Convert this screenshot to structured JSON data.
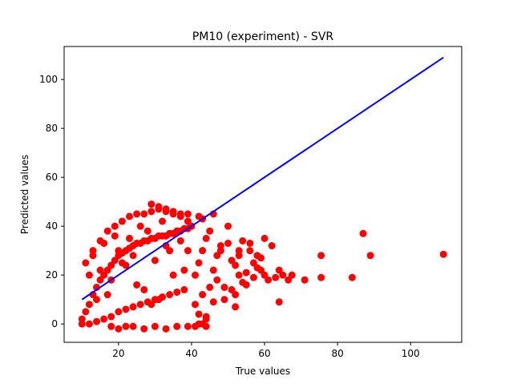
{
  "chart_data": {
    "type": "scatter",
    "title": "PM10 (experiment) - SVR",
    "xlabel": "True values",
    "ylabel": "Predicted values",
    "xlim": [
      5.1,
      114.0
    ],
    "ylim": [
      -7.5,
      113.5
    ],
    "xticks": [
      20,
      40,
      60,
      80,
      100
    ],
    "yticks": [
      0,
      20,
      40,
      60,
      80,
      100
    ],
    "grid": false,
    "legend": "none",
    "point_color": "#ff0000",
    "line_color": "#0000ff",
    "series": [
      {
        "kind": "points",
        "x": [
          10,
          11,
          12,
          13,
          14,
          15,
          16,
          17,
          18,
          19,
          20,
          21,
          22,
          23,
          24,
          25,
          26,
          27,
          28,
          29,
          30,
          31,
          32,
          33,
          34,
          35,
          36,
          37,
          38,
          39,
          40,
          10,
          12,
          14,
          16,
          18,
          20,
          22,
          24,
          26,
          28,
          30,
          32,
          34,
          36,
          38,
          11,
          13,
          15,
          17,
          19,
          21,
          23,
          25,
          27,
          29,
          31,
          33,
          35,
          37,
          39,
          12,
          15,
          18,
          21,
          24,
          27,
          30,
          33,
          36,
          39,
          14,
          17,
          20,
          23,
          26,
          29,
          32,
          35,
          38,
          13,
          16,
          19,
          22,
          25,
          28,
          31,
          34,
          37,
          41,
          42,
          43,
          44,
          45,
          46,
          47,
          48,
          49,
          50,
          51,
          52,
          53,
          54,
          55,
          56,
          57,
          58,
          59,
          60,
          61,
          62,
          63,
          64,
          65,
          41,
          43,
          45,
          47,
          49,
          51,
          53,
          55,
          57,
          59,
          42,
          44,
          46,
          48,
          50,
          52,
          54,
          56,
          58,
          66.5,
          67.5,
          71,
          75.5,
          75.5,
          84,
          87,
          89,
          109,
          18,
          20,
          22,
          24,
          27,
          30,
          33,
          36,
          39,
          41,
          42,
          43,
          44,
          44,
          52,
          39,
          37,
          35,
          33,
          31,
          29,
          42,
          43,
          46,
          53,
          60,
          64
        ],
        "y": [
          2,
          5,
          8,
          12,
          15,
          18,
          20,
          22,
          24,
          26,
          28,
          29,
          30,
          31,
          32,
          33,
          33,
          34,
          34,
          35,
          35,
          36,
          36,
          36,
          37,
          37,
          38,
          38,
          39,
          39,
          40,
          0,
          0,
          1,
          2,
          3,
          5,
          6,
          7,
          8,
          9,
          10,
          11,
          12,
          13,
          14,
          25,
          30,
          34,
          38,
          40,
          42,
          44,
          45,
          45,
          46,
          47,
          46,
          45,
          44,
          42,
          20,
          22,
          18,
          25,
          28,
          14,
          26,
          32,
          38,
          30,
          10,
          12,
          30,
          35,
          40,
          8,
          42,
          20,
          22,
          28,
          33,
          36,
          24,
          16,
          38,
          10,
          30,
          34,
          20,
          25,
          30,
          35,
          38,
          22,
          28,
          32,
          15,
          33,
          26,
          24,
          28,
          34,
          21,
          30,
          19,
          23,
          27,
          35,
          18,
          32,
          19,
          22,
          20,
          8,
          12,
          15,
          18,
          10,
          14,
          20,
          16,
          25,
          22,
          4,
          2,
          9,
          30,
          40,
          12,
          17,
          33,
          28,
          18,
          20,
          18,
          19,
          28,
          19,
          37,
          28,
          28.5,
          -1,
          -2,
          -1,
          -1,
          -2,
          -1,
          -2,
          -1,
          -1,
          -1,
          0,
          0,
          -1,
          3,
          7,
          45,
          45,
          46,
          47,
          48,
          49,
          44,
          43,
          45,
          30,
          20,
          9
        ]
      },
      {
        "kind": "line",
        "x": [
          10,
          109
        ],
        "y": [
          10,
          109
        ]
      }
    ]
  }
}
